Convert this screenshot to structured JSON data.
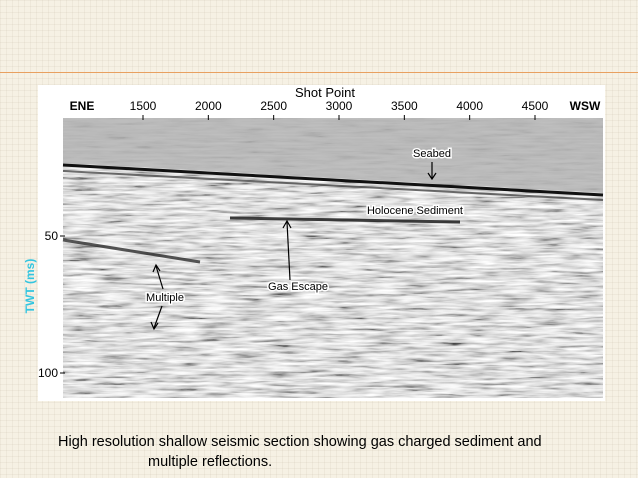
{
  "figure": {
    "top_label": "Shot Point",
    "left_direction": "ENE",
    "right_direction": "WSW",
    "shot_point_ticks": [
      1500,
      2000,
      2500,
      3000,
      3500,
      4000,
      4500
    ],
    "y_label": "TWT (ms)",
    "twt_ticks": [
      50,
      100
    ],
    "annotations": {
      "seabed": "Seabed",
      "holocene": "Holocene Sediment",
      "gas": "Gas Escape",
      "multiple": "Multiple"
    }
  },
  "caption": {
    "lines": [
      "High resolution shallow seismic section showing gas charged sediment and",
      "multiple reflections."
    ]
  }
}
